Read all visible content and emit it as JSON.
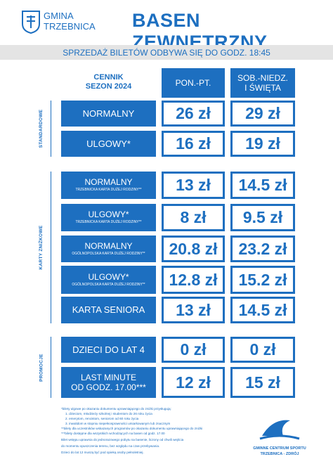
{
  "header": {
    "logo_line1": "GMINA",
    "logo_line2": "TRZEBNICA",
    "title": "BASEN ZEWNĘTRZNY"
  },
  "banner": "SPRZEDAŻ BILETÓW ODBYWA SIĘ DO GODZ. 18:45",
  "table": {
    "header": {
      "label": [
        "CENNIK",
        "SEZON 2024"
      ],
      "col1": [
        "PON.-PT."
      ],
      "col2": [
        "SOB.-NIEDZ.",
        "I ŚWIĘTA"
      ]
    },
    "sections": [
      {
        "name": "STANDARDOWE",
        "rows": [
          {
            "label": "NORMALNY",
            "price1": "26 zł",
            "price2": "29 zł"
          },
          {
            "label": "ULGOWY*",
            "price1": "16 zł",
            "price2": "19 zł"
          }
        ]
      },
      {
        "name": "KARTY ZNIŻKOWE",
        "rows": [
          {
            "label": "NORMALNY",
            "sub": "TRZEBNICKA KARTA DUŻEJ RODZINY**",
            "price1": "13 zł",
            "price2": "14.5 zł"
          },
          {
            "label": "ULGOWY*",
            "sub": "TRZEBNICKA KARTA DUŻEJ RODZINY**",
            "price1": "8 zł",
            "price2": "9.5 zł"
          },
          {
            "label": "NORMALNY",
            "sub": "OGÓLNOPOLSKA KARTA DUŻEJ RODZINY**",
            "price1": "20.8 zł",
            "price2": "23.2 zł"
          },
          {
            "label": "ULGOWY*",
            "sub": "OGÓLNOPOLSKA KARTA DUŻEJ RODZINY**",
            "price1": "12.8 zł",
            "price2": "15.2 zł"
          },
          {
            "label": "KARTA SENIORA",
            "price1": "13 zł",
            "price2": "14.5 zł"
          }
        ]
      },
      {
        "name": "PROMOCJE",
        "rows": [
          {
            "label": "DZIECI DO LAT 4",
            "price1": "0 zł",
            "price2": "0 zł"
          },
          {
            "label": "LAST MINUTE",
            "sub": "OD GODZ. 17.00***",
            "price1": "12 zł",
            "price2": "15 zł"
          }
        ]
      }
    ]
  },
  "footnotes": [
    "*bilety ulgowe po okazaniu dokumentu uprawniającego do zniżki przysługują:",
    "1. dzieciom, młodzieży szkolnej i studentom do 26 roku życia",
    "2. emerytom, rencistom, seniorom od 60 roku życia",
    "3. inwalidom w stopniu niepełnosprawności umiarkowanym lub znacznym",
    "**bilety dla uczestników wskazanych programów po okazaniu dokumentu uprawniającego do zniżki",
    "***bilety dostępne dla wszystkich wchodzących na basen od godz. 17.00",
    "Bilet wstępu uprawnia do jednorazowego pobytu na basenie, liczony od chwili wejścia",
    "do momentu opuszczenia terenu, bez względu na czas przebywania.",
    "Dzieci do lat 12 muszą być pod opieką osoby pełnoletniej."
  ],
  "footer_logo": {
    "line1": "GMINNE CENTRUM SPORTU",
    "line2": "TRZEBNICA - ZDRÓJ"
  }
}
